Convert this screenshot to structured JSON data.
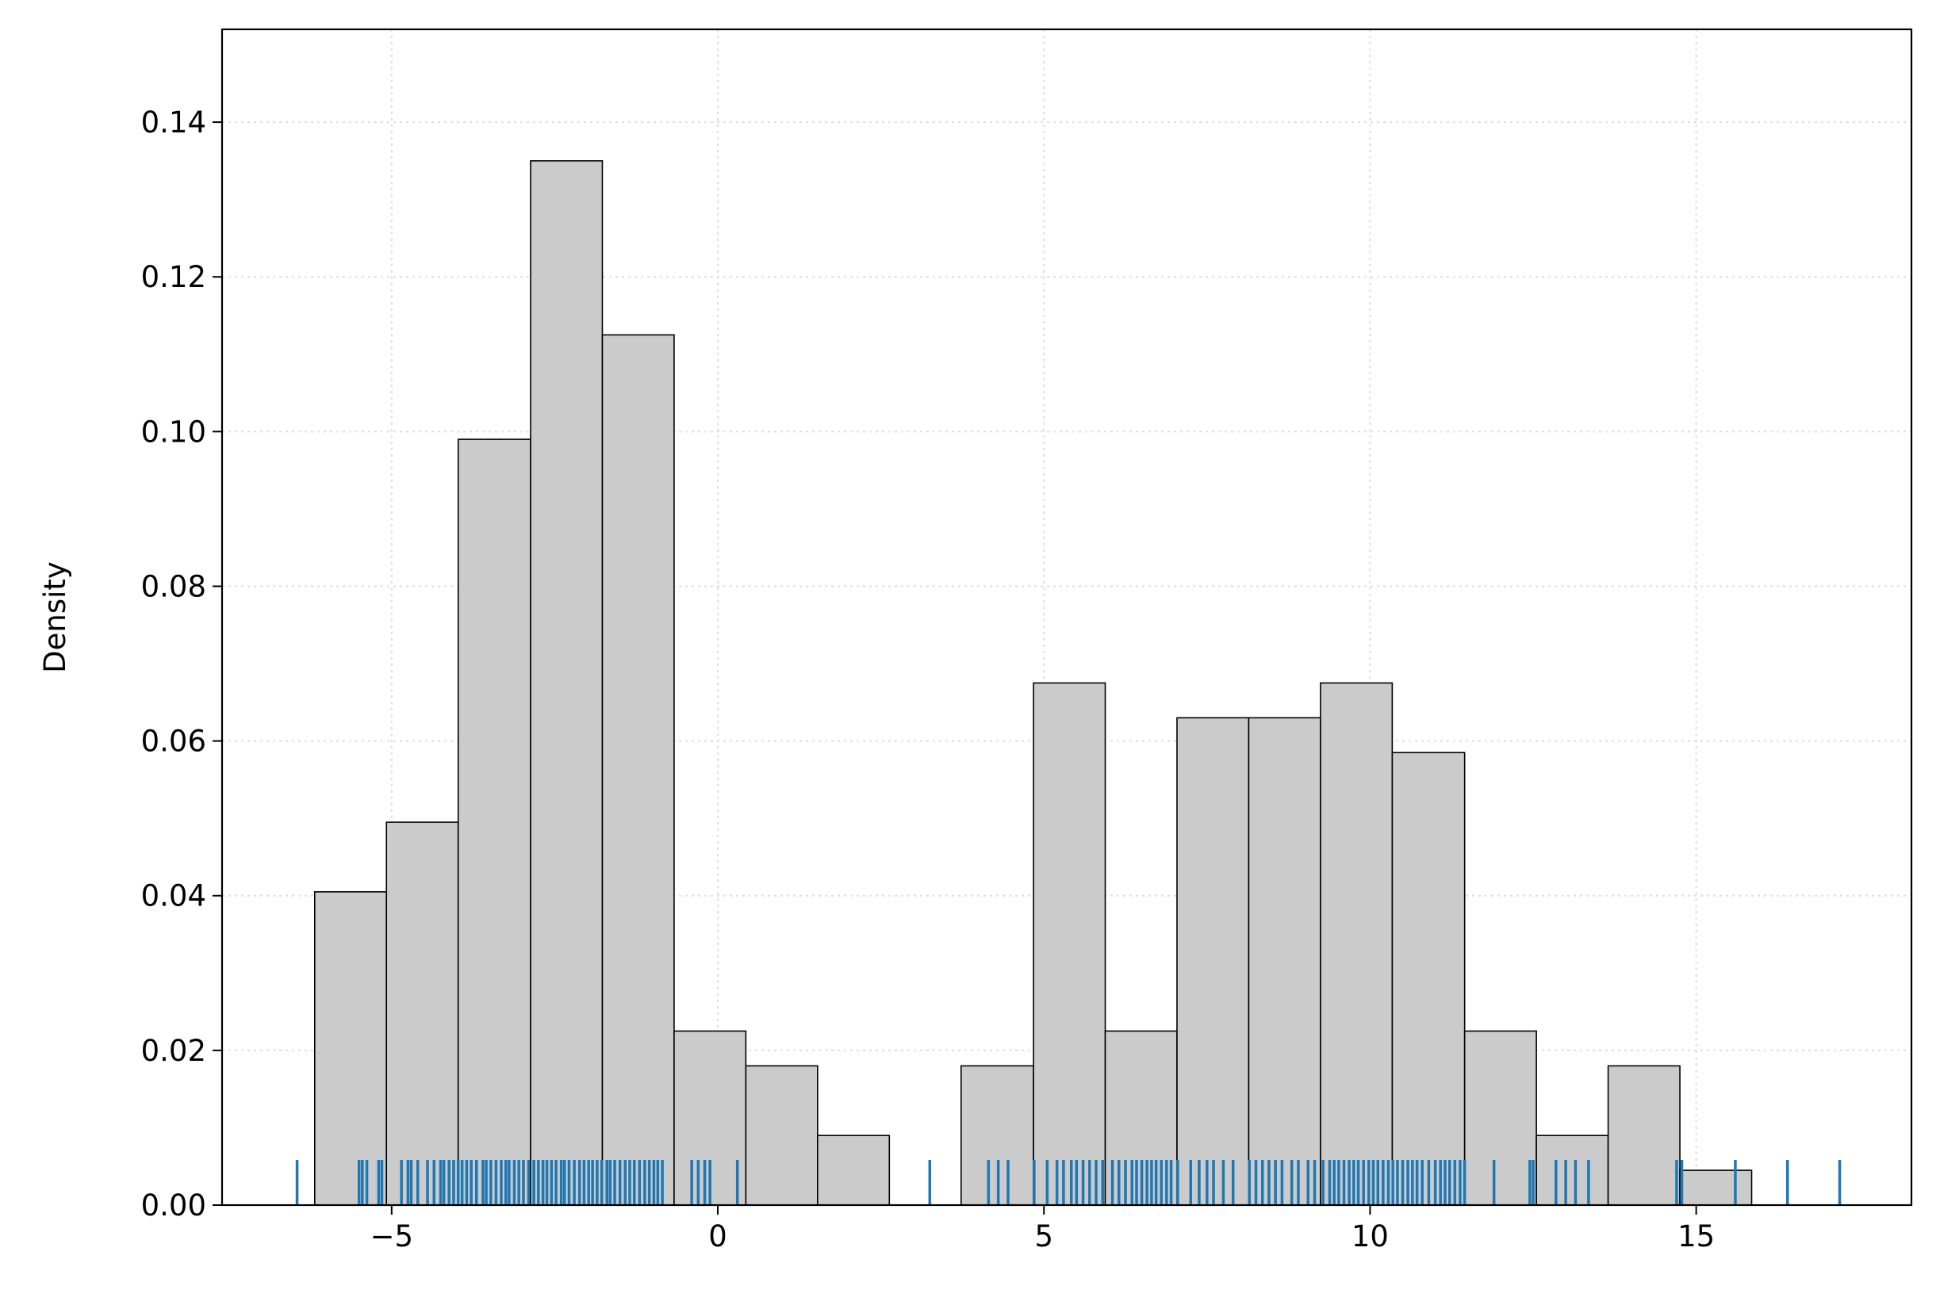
{
  "chart_data": {
    "type": "histogram",
    "xlabel": "",
    "ylabel": "Density",
    "xlim": [
      -7.6,
      18.3
    ],
    "ylim": [
      0,
      0.152
    ],
    "grid": true,
    "x_ticks": [
      -5,
      0,
      5,
      10,
      15
    ],
    "x_tick_labels": [
      "−5",
      "0",
      "5",
      "10",
      "15"
    ],
    "y_ticks": [
      0.0,
      0.02,
      0.04,
      0.06,
      0.08,
      0.1,
      0.12,
      0.14
    ],
    "y_tick_labels": [
      "0.00",
      "0.02",
      "0.04",
      "0.06",
      "0.08",
      "0.10",
      "0.12",
      "0.14"
    ],
    "bins": [
      {
        "x0": -6.18,
        "x1": -5.08,
        "density": 0.0405
      },
      {
        "x0": -5.08,
        "x1": -3.98,
        "density": 0.0495
      },
      {
        "x0": -3.98,
        "x1": -2.87,
        "density": 0.099
      },
      {
        "x0": -2.87,
        "x1": -1.77,
        "density": 0.135
      },
      {
        "x0": -1.77,
        "x1": -0.67,
        "density": 0.1125
      },
      {
        "x0": -0.67,
        "x1": 0.43,
        "density": 0.0225
      },
      {
        "x0": 0.43,
        "x1": 1.53,
        "density": 0.018
      },
      {
        "x0": 1.53,
        "x1": 2.63,
        "density": 0.009
      },
      {
        "x0": 3.73,
        "x1": 4.84,
        "density": 0.018
      },
      {
        "x0": 4.84,
        "x1": 5.94,
        "density": 0.0675
      },
      {
        "x0": 5.94,
        "x1": 7.04,
        "density": 0.0225
      },
      {
        "x0": 7.04,
        "x1": 8.14,
        "density": 0.063
      },
      {
        "x0": 8.14,
        "x1": 9.24,
        "density": 0.063
      },
      {
        "x0": 9.24,
        "x1": 10.34,
        "density": 0.0675
      },
      {
        "x0": 10.34,
        "x1": 11.45,
        "density": 0.0585
      },
      {
        "x0": 11.45,
        "x1": 12.55,
        "density": 0.0225
      },
      {
        "x0": 12.55,
        "x1": 13.65,
        "density": 0.009
      },
      {
        "x0": 13.65,
        "x1": 14.75,
        "density": 0.018
      },
      {
        "x0": 14.75,
        "x1": 15.85,
        "density": 0.0045
      }
    ],
    "rug": [
      -6.45,
      -5.5,
      -5.45,
      -5.38,
      -5.2,
      -5.15,
      -4.85,
      -4.75,
      -4.7,
      -4.6,
      -4.45,
      -4.35,
      -4.25,
      -4.2,
      -4.12,
      -4.05,
      -3.98,
      -3.92,
      -3.85,
      -3.78,
      -3.7,
      -3.6,
      -3.55,
      -3.48,
      -3.4,
      -3.32,
      -3.25,
      -3.2,
      -3.12,
      -3.05,
      -2.98,
      -2.9,
      -2.82,
      -2.75,
      -2.68,
      -2.62,
      -2.55,
      -2.48,
      -2.4,
      -2.35,
      -2.28,
      -2.2,
      -2.12,
      -2.05,
      -1.98,
      -1.92,
      -1.85,
      -1.78,
      -1.7,
      -1.65,
      -1.58,
      -1.5,
      -1.42,
      -1.35,
      -1.28,
      -1.2,
      -1.12,
      -1.05,
      -0.98,
      -0.92,
      -0.85,
      -0.4,
      -0.3,
      -0.2,
      -0.12,
      0.3,
      3.25,
      4.15,
      4.3,
      4.45,
      4.85,
      5.05,
      5.2,
      5.3,
      5.42,
      5.5,
      5.6,
      5.7,
      5.8,
      5.9,
      6.05,
      6.15,
      6.25,
      6.35,
      6.42,
      6.5,
      6.58,
      6.65,
      6.72,
      6.8,
      6.88,
      6.95,
      7.05,
      7.25,
      7.38,
      7.5,
      7.6,
      7.75,
      7.9,
      8.15,
      8.25,
      8.35,
      8.45,
      8.55,
      8.65,
      8.8,
      8.9,
      9.05,
      9.15,
      9.28,
      9.38,
      9.45,
      9.52,
      9.6,
      9.68,
      9.75,
      9.82,
      9.9,
      9.98,
      10.05,
      10.12,
      10.2,
      10.28,
      10.35,
      10.42,
      10.5,
      10.58,
      10.65,
      10.72,
      10.8,
      10.9,
      11.0,
      11.08,
      11.15,
      11.22,
      11.3,
      11.38,
      11.45,
      11.9,
      12.45,
      12.5,
      12.85,
      13.0,
      13.15,
      13.35,
      14.7,
      14.78,
      15.6,
      16.4,
      17.2
    ]
  }
}
